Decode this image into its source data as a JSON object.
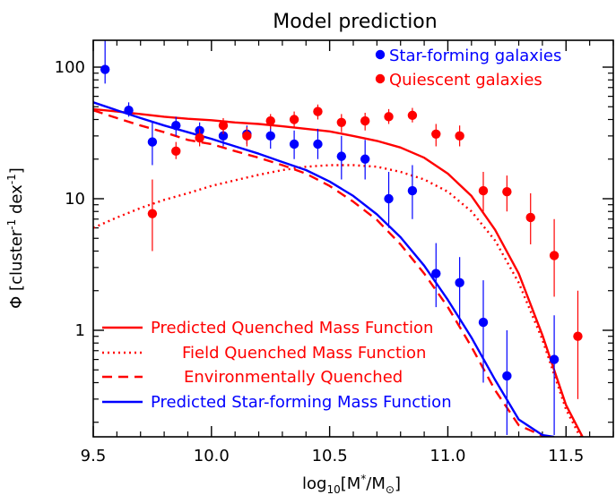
{
  "chart_data": {
    "type": "scatter",
    "title": "Model prediction",
    "xlabel": "log",
    "xlabel_sub": "10",
    "xlabel_arg": "[M",
    "xlabel_sup": "*",
    "xlabel_tail": "/M",
    "xlabel_sun": "⊙",
    "xlabel_close": "]",
    "ylabel": "Φ [cluster",
    "ylabel_sup1": "-1",
    "ylabel_mid": " dex",
    "ylabel_sup2": "-1",
    "ylabel_close": "]",
    "xlim": [
      9.5,
      11.7
    ],
    "ylim": [
      0.155,
      160
    ],
    "yscale": "log",
    "x_ticks": [
      9.5,
      10.0,
      10.5,
      11.0,
      11.5
    ],
    "x_tick_labels": [
      "9.5",
      "10.0",
      "10.5",
      "11.0",
      "11.5"
    ],
    "y_ticks": [
      1,
      10,
      100
    ],
    "y_tick_labels": [
      "1",
      "10",
      "100"
    ],
    "colors": {
      "star_forming": "#0000ff",
      "quiescent": "#ff0000",
      "axis": "#000000"
    },
    "point_series": [
      {
        "name": "Star-forming galaxies",
        "color": "#0000ff",
        "x": [
          9.55,
          9.65,
          9.75,
          9.85,
          9.95,
          10.05,
          10.15,
          10.25,
          10.35,
          10.45,
          10.55,
          10.65,
          10.75,
          10.85,
          10.95,
          11.05,
          11.15,
          11.25,
          11.45
        ],
        "y": [
          96,
          47,
          27,
          36,
          33,
          30,
          31,
          30,
          26,
          26,
          21,
          20,
          10,
          11.5,
          2.7,
          2.3,
          1.15,
          0.45,
          0.6
        ],
        "err_low": [
          75,
          42,
          18,
          30,
          28,
          25,
          26,
          24,
          20,
          20,
          14,
          14,
          6,
          7,
          1.5,
          1.1,
          0.4,
          0.16,
          0.16
        ],
        "err_high": [
          160,
          54,
          38,
          42,
          38,
          36,
          36,
          36,
          33,
          34,
          30,
          28,
          16,
          18,
          4.6,
          3.6,
          2.4,
          1.0,
          1.3
        ]
      },
      {
        "name": "Quiescent galaxies",
        "color": "#ff0000",
        "x": [
          9.75,
          9.85,
          9.95,
          10.05,
          10.15,
          10.25,
          10.35,
          10.45,
          10.55,
          10.65,
          10.75,
          10.85,
          10.95,
          11.05,
          11.15,
          11.25,
          11.35,
          11.45,
          11.55
        ],
        "y": [
          7.7,
          23,
          29,
          36,
          30,
          39,
          40,
          46,
          38,
          39,
          42,
          43,
          31,
          30,
          11.5,
          11.3,
          7.2,
          3.7,
          0.9
        ],
        "err_low": [
          4.0,
          20,
          25,
          31,
          25,
          34,
          35,
          40,
          32,
          33,
          37,
          38,
          25,
          25,
          8,
          8,
          4.5,
          1.8,
          0.3
        ],
        "err_high": [
          14,
          27,
          34,
          41,
          35,
          44,
          46,
          52,
          44,
          45,
          48,
          49,
          37,
          36,
          16,
          15,
          11,
          7,
          2.0
        ]
      }
    ],
    "line_series": [
      {
        "name": "Predicted Quenched Mass Function",
        "color": "#ff0000",
        "dash": "solid",
        "x": [
          9.5,
          9.6,
          9.7,
          9.8,
          9.9,
          10.0,
          10.1,
          10.2,
          10.3,
          10.4,
          10.5,
          10.6,
          10.7,
          10.8,
          10.9,
          11.0,
          11.1,
          11.2,
          11.3,
          11.4,
          11.5,
          11.57
        ],
        "y": [
          48,
          46,
          44,
          42,
          40.5,
          39.5,
          38,
          37,
          35.5,
          34,
          32.5,
          30,
          27.5,
          24.5,
          20.5,
          15.5,
          10.5,
          5.8,
          2.7,
          0.92,
          0.27,
          0.155
        ]
      },
      {
        "name": "Field Quenched Mass Function",
        "color": "#ff0000",
        "dash": "dotted",
        "x": [
          9.5,
          9.6,
          9.7,
          9.8,
          9.9,
          10.0,
          10.1,
          10.2,
          10.3,
          10.4,
          10.5,
          10.6,
          10.7,
          10.8,
          10.9,
          11.0,
          11.1,
          11.2,
          11.3,
          11.4,
          11.5,
          11.56
        ],
        "y": [
          6.0,
          7.2,
          8.5,
          9.8,
          11.0,
          12.5,
          13.8,
          15.2,
          16.5,
          17.5,
          18.0,
          18.0,
          17.5,
          16.0,
          14.0,
          11.3,
          8.0,
          4.8,
          2.3,
          0.85,
          0.25,
          0.155
        ]
      },
      {
        "name": "Environmentally Quenched",
        "color": "#ff0000",
        "dash": "dashed",
        "x": [
          9.5,
          9.6,
          9.7,
          9.8,
          9.9,
          10.0,
          10.1,
          10.2,
          10.3,
          10.4,
          10.5,
          10.6,
          10.7,
          10.8,
          10.9,
          11.0,
          11.1,
          11.2,
          11.3,
          11.4,
          11.43
        ],
        "y": [
          47,
          41,
          36,
          32,
          28,
          26,
          23,
          20.5,
          18,
          15.5,
          12.5,
          9.5,
          6.9,
          4.5,
          2.7,
          1.5,
          0.75,
          0.35,
          0.19,
          0.158,
          0.155
        ]
      },
      {
        "name": "Predicted Star-forming Mass Function",
        "color": "#0000ff",
        "dash": "solid",
        "x": [
          9.5,
          9.6,
          9.7,
          9.8,
          9.9,
          10.0,
          10.1,
          10.2,
          10.3,
          10.4,
          10.5,
          10.6,
          10.7,
          10.8,
          10.9,
          11.0,
          11.1,
          11.2,
          11.3,
          11.4,
          11.45
        ],
        "y": [
          54,
          47,
          41,
          36,
          32,
          28.5,
          25,
          22,
          19,
          16.5,
          13.5,
          10.5,
          7.6,
          5.1,
          3.1,
          1.7,
          0.88,
          0.42,
          0.21,
          0.16,
          0.155
        ]
      }
    ],
    "legends": {
      "points_position": "top-right",
      "lines_position": "bottom-left"
    }
  }
}
